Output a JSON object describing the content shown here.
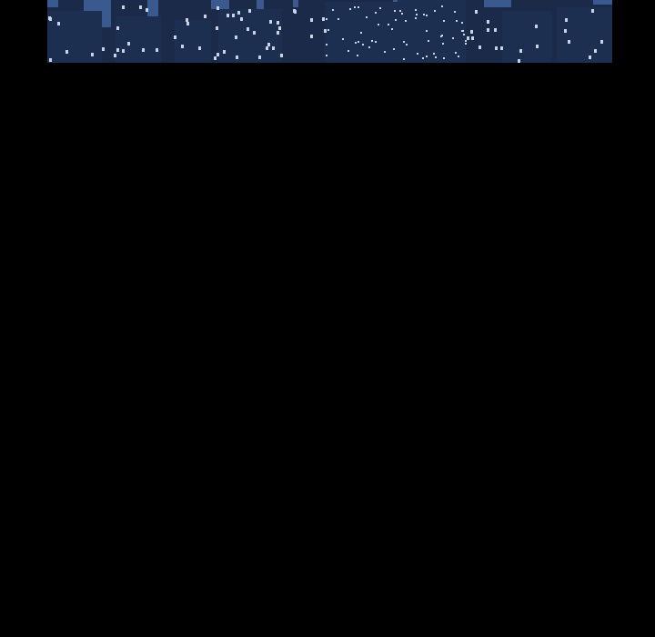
{
  "comic_panel": {
    "scene": "night-city-skyline",
    "colors": {
      "sky": "#3a5a8f",
      "buildings": "#1a2a48",
      "windows": "#c8d4e6",
      "background": "#000000"
    }
  }
}
